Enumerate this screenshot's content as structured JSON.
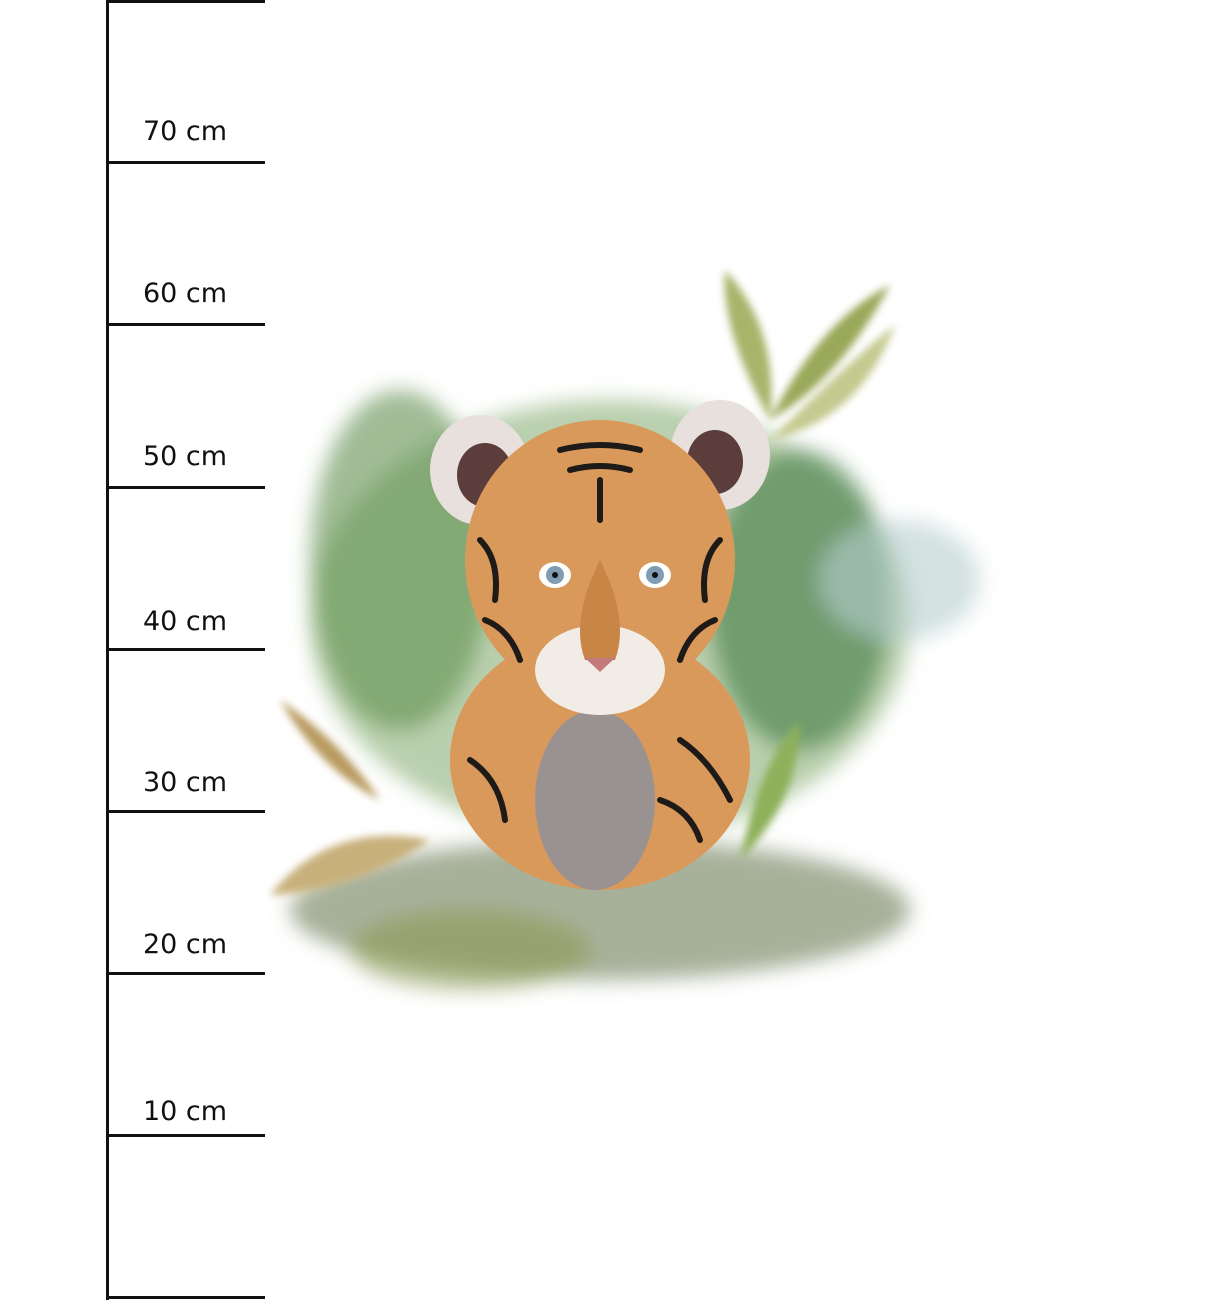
{
  "ruler": {
    "unit": "cm",
    "labels": [
      "70 cm",
      "60 cm",
      "50 cm",
      "40 cm",
      "30 cm",
      "20 cm",
      "10 cm"
    ]
  },
  "illustration": {
    "subject": "watercolor tiger cub in foliage",
    "colors": {
      "fur": "#d9995a",
      "stripes": "#1e1a18",
      "foliage": "#5f8f4e",
      "leaf": "#a9b46a",
      "eyes": "#7f9db3"
    }
  }
}
